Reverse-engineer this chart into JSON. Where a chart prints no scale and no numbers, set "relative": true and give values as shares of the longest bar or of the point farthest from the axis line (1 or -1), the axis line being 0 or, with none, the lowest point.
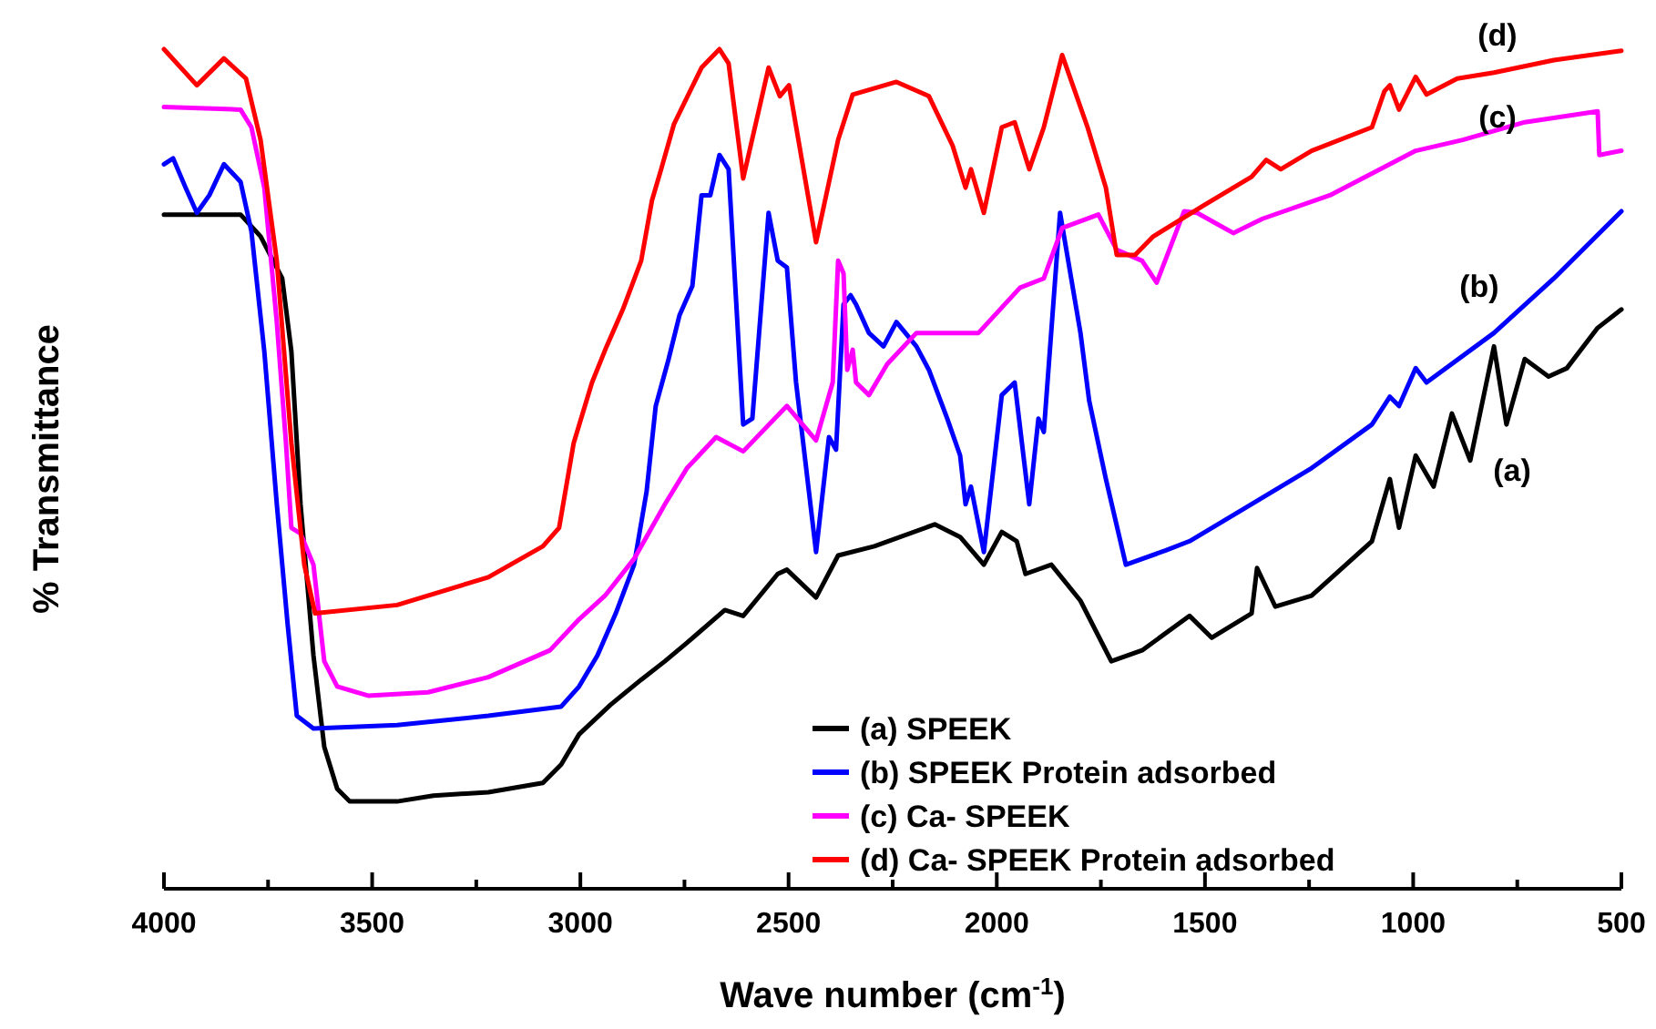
{
  "chart_data": {
    "type": "line",
    "relative": true,
    "xlabel": "Wave number (cm$^{-1}$)",
    "ylabel": "% Transmittance",
    "xlim": [
      4000,
      500
    ],
    "xticks": [
      4000,
      {
        "value": 3750,
        "label": null
      },
      3500,
      {
        "value": 3250,
        "label": null
      },
      3000,
      {
        "value": 2750,
        "label": null
      },
      2500,
      {
        "value": 2250,
        "label": null
      },
      2000,
      {
        "value": 1750,
        "label": null
      },
      1500,
      {
        "value": 1250,
        "label": null
      },
      1000,
      {
        "value": 750,
        "label": null
      },
      500
    ],
    "legend": "bottom right",
    "grid": false,
    "marker": "none",
    "line_style": "solid",
    "annotations": [
      "(a)",
      "(b)",
      "(c)",
      "(d)"
    ],
    "series": [
      {
        "name": "(a) SPEEK",
        "color": "#000000",
        "x": [
          4000,
          3816,
          3768,
          3716,
          3694,
          3672,
          3641,
          3615,
          3584,
          3554,
          3440,
          3353,
          3221,
          3090,
          3046,
          3003,
          2928,
          2854,
          2797,
          2744,
          2653,
          2609,
          2526,
          2504,
          2434,
          2381,
          2294,
          2149,
          2088,
          2031,
          1988,
          1952,
          1931,
          1869,
          1799,
          1725,
          1651,
          1537,
          1484,
          1388,
          1375,
          1331,
          1244,
          1099,
          1056,
          1034,
          994,
          951,
          907,
          863,
          806,
          776,
          732,
          675,
          631,
          557,
          500
        ],
        "values": [
          0.803,
          0.803,
          0.777,
          0.727,
          0.64,
          0.458,
          0.278,
          0.169,
          0.119,
          0.104,
          0.104,
          0.111,
          0.115,
          0.126,
          0.148,
          0.184,
          0.219,
          0.249,
          0.271,
          0.293,
          0.332,
          0.325,
          0.375,
          0.38,
          0.347,
          0.397,
          0.408,
          0.434,
          0.419,
          0.386,
          0.425,
          0.414,
          0.375,
          0.386,
          0.343,
          0.271,
          0.284,
          0.325,
          0.299,
          0.328,
          0.382,
          0.336,
          0.349,
          0.414,
          0.488,
          0.43,
          0.516,
          0.479,
          0.566,
          0.51,
          0.646,
          0.553,
          0.631,
          0.61,
          0.62,
          0.668,
          0.69
        ]
      },
      {
        "name": "(b) SPEEK Protein adsorbed",
        "color": "#0000ff",
        "x": [
          4000,
          3978,
          3948,
          3921,
          3891,
          3856,
          3816,
          3790,
          3759,
          3729,
          3703,
          3681,
          3641,
          3440,
          3221,
          3046,
          3003,
          2959,
          2915,
          2871,
          2841,
          2819,
          2788,
          2762,
          2731,
          2709,
          2688,
          2666,
          2644,
          2609,
          2587,
          2548,
          2526,
          2504,
          2482,
          2434,
          2403,
          2386,
          2368,
          2351,
          2338,
          2307,
          2272,
          2241,
          2193,
          2163,
          2119,
          2088,
          2075,
          2062,
          2031,
          1988,
          1957,
          1922,
          1900,
          1887,
          1848,
          1799,
          1778,
          1738,
          1690,
          1594,
          1537,
          1388,
          1244,
          1099,
          1056,
          1034,
          994,
          968,
          806,
          662,
          500
        ],
        "values": [
          0.863,
          0.87,
          0.835,
          0.805,
          0.826,
          0.863,
          0.842,
          0.783,
          0.64,
          0.458,
          0.315,
          0.206,
          0.191,
          0.195,
          0.206,
          0.217,
          0.241,
          0.278,
          0.328,
          0.386,
          0.473,
          0.575,
          0.631,
          0.683,
          0.718,
          0.826,
          0.826,
          0.874,
          0.857,
          0.553,
          0.56,
          0.805,
          0.748,
          0.74,
          0.603,
          0.401,
          0.538,
          0.523,
          0.696,
          0.707,
          0.696,
          0.662,
          0.646,
          0.675,
          0.646,
          0.618,
          0.56,
          0.516,
          0.458,
          0.479,
          0.401,
          0.588,
          0.603,
          0.458,
          0.56,
          0.544,
          0.805,
          0.662,
          0.581,
          0.488,
          0.386,
          0.403,
          0.414,
          0.458,
          0.501,
          0.553,
          0.586,
          0.575,
          0.62,
          0.603,
          0.662,
          0.727,
          0.807
        ]
      },
      {
        "name": "(c) Ca- SPEEK",
        "color": "#ff00ff",
        "x": [
          4000,
          3816,
          3790,
          3759,
          3729,
          3707,
          3694,
          3672,
          3641,
          3615,
          3584,
          3510,
          3366,
          3221,
          3073,
          3003,
          2941,
          2871,
          2797,
          2744,
          2674,
          2609,
          2504,
          2434,
          2394,
          2381,
          2368,
          2359,
          2346,
          2338,
          2307,
          2263,
          2193,
          2044,
          1944,
          1887,
          1843,
          1756,
          1712,
          1651,
          1616,
          1550,
          1519,
          1432,
          1362,
          1200,
          1056,
          994,
          881,
          732,
          557,
          553,
          500
        ],
        "values": [
          0.931,
          0.928,
          0.907,
          0.835,
          0.675,
          0.531,
          0.43,
          0.423,
          0.386,
          0.271,
          0.241,
          0.23,
          0.234,
          0.252,
          0.284,
          0.321,
          0.349,
          0.393,
          0.458,
          0.501,
          0.538,
          0.521,
          0.575,
          0.534,
          0.603,
          0.748,
          0.733,
          0.618,
          0.642,
          0.603,
          0.588,
          0.625,
          0.662,
          0.662,
          0.716,
          0.727,
          0.787,
          0.803,
          0.761,
          0.748,
          0.722,
          0.807,
          0.805,
          0.781,
          0.798,
          0.826,
          0.863,
          0.879,
          0.892,
          0.913,
          0.926,
          0.874,
          0.879
        ]
      },
      {
        "name": "(d) Ca- SPEEK Protein adsorbed",
        "color": "#ff0000",
        "x": [
          4000,
          3921,
          3856,
          3803,
          3768,
          3729,
          3694,
          3663,
          3637,
          3440,
          3221,
          3090,
          3051,
          3016,
          2972,
          2937,
          2898,
          2854,
          2828,
          2806,
          2775,
          2709,
          2666,
          2644,
          2609,
          2548,
          2521,
          2499,
          2434,
          2381,
          2346,
          2241,
          2163,
          2106,
          2075,
          2062,
          2031,
          1988,
          1957,
          1922,
          1887,
          1843,
          1782,
          1738,
          1712,
          1668,
          1624,
          1506,
          1388,
          1353,
          1318,
          1244,
          1099,
          1069,
          1056,
          1034,
          994,
          968,
          894,
          806,
          662,
          500
        ],
        "values": [
          1.0,
          0.957,
          0.989,
          0.965,
          0.892,
          0.748,
          0.531,
          0.386,
          0.328,
          0.338,
          0.371,
          0.408,
          0.43,
          0.531,
          0.603,
          0.646,
          0.69,
          0.748,
          0.82,
          0.857,
          0.911,
          0.978,
          1.0,
          0.983,
          0.846,
          0.978,
          0.944,
          0.957,
          0.77,
          0.892,
          0.946,
          0.961,
          0.944,
          0.885,
          0.835,
          0.857,
          0.805,
          0.907,
          0.913,
          0.857,
          0.907,
          0.993,
          0.907,
          0.835,
          0.755,
          0.755,
          0.777,
          0.813,
          0.848,
          0.868,
          0.857,
          0.879,
          0.907,
          0.95,
          0.957,
          0.928,
          0.967,
          0.946,
          0.965,
          0.972,
          0.987,
          0.998
        ]
      }
    ]
  }
}
